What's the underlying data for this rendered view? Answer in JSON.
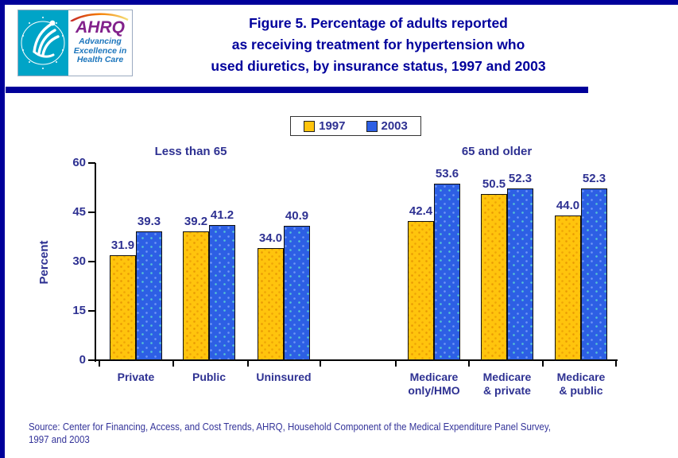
{
  "title": {
    "lines": [
      "Figure 5. Percentage of adults reported",
      "as receiving treatment for hypertension who",
      "used diuretics, by insurance status, 1997 and 2003"
    ]
  },
  "logo": {
    "hhs_name": "hhs-eagle-emblem",
    "hhs_ring_text": "DEPARTMENT OF HEALTH & HUMAN SERVICES - USA",
    "ahrq_text": "AHRQ",
    "tagline_lines": [
      "Advancing",
      "Excellence in",
      "Health Care"
    ]
  },
  "source": {
    "lines": [
      "Source: Center for Financing, Access, and Cost Trends, AHRQ, Household Component of the Medical Expenditure Panel Survey,",
      "1997 and 2003"
    ]
  },
  "colors": {
    "navy": "#00009A",
    "chart_text": "#2E3192",
    "series_1997": "#FFC40D",
    "series_2003": "#2D5FE4",
    "hhs_teal": "#00A4C7",
    "ahrq_purple": "#82218B",
    "ahrq_blue": "#1B75BC"
  },
  "chart_data": {
    "type": "bar",
    "title": "Percentage of adults reported as receiving treatment for hypertension who used diuretics, by insurance status, 1997 and 2003",
    "ylabel": "Percent",
    "xlabel": "",
    "ylim": [
      0,
      60
    ],
    "yticks": [
      0,
      15,
      30,
      45,
      60
    ],
    "grid": false,
    "legend_position": "top",
    "group_headers": [
      "Less than 65",
      "65 and older"
    ],
    "categories": [
      "Private",
      "Public",
      "Uninsured",
      "Medicare only/HMO",
      "Medicare & private",
      "Medicare & public"
    ],
    "categories_display": [
      [
        "Private"
      ],
      [
        "Public"
      ],
      [
        "Uninsured"
      ],
      [
        "Medicare",
        "only/HMO"
      ],
      [
        "Medicare",
        "& private"
      ],
      [
        "Medicare",
        "& public"
      ]
    ],
    "series": [
      {
        "name": "1997",
        "color": "#FFC40D",
        "values": [
          31.9,
          39.2,
          34.0,
          42.4,
          50.5,
          44.0
        ]
      },
      {
        "name": "2003",
        "color": "#2D5FE4",
        "values": [
          39.3,
          41.2,
          40.9,
          53.6,
          52.3,
          52.3
        ]
      }
    ]
  }
}
